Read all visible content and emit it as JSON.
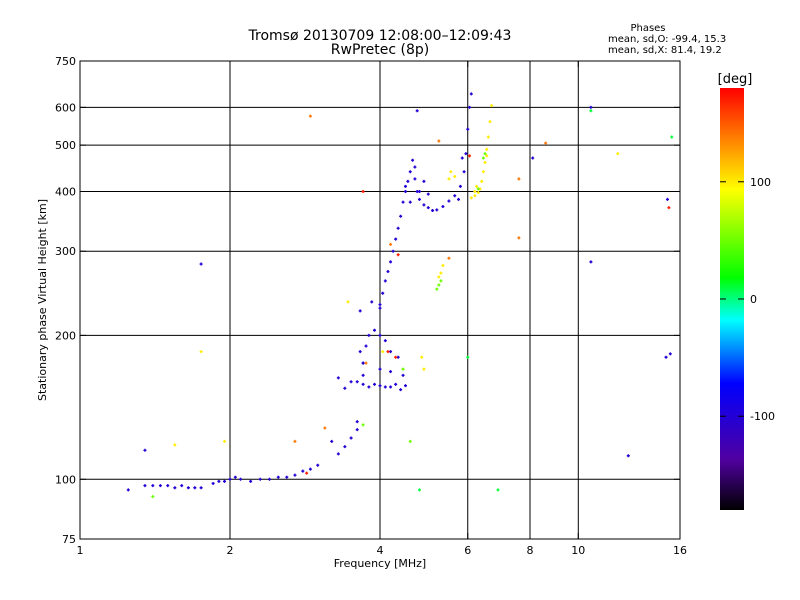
{
  "header": {
    "title": "Tromsø 20130709 12:08:00–12:09:43",
    "subtitle": "RwPretec (8p)",
    "phase_title": "Phases",
    "phase_line_o": "mean, sd,O: -99.4, 15.3",
    "phase_line_x": "mean, sd,X:  81.4, 19.2"
  },
  "chart_data": {
    "type": "scatter",
    "xlabel": "Frequency [MHz]",
    "ylabel": "Stationary phase Virtual Height [km]",
    "x_scale": "log",
    "y_scale": "log",
    "xlim": [
      1,
      16
    ],
    "ylim": [
      75,
      750
    ],
    "x_ticks": [
      1,
      2,
      4,
      6,
      8,
      10,
      16
    ],
    "y_ticks": [
      75,
      100,
      200,
      300,
      400,
      500,
      600,
      750
    ],
    "x_grid": [
      2,
      4,
      6,
      8,
      10
    ],
    "y_grid": [
      100,
      200,
      300,
      400,
      500,
      600
    ],
    "grid": true,
    "colorbar": {
      "label": "[deg]",
      "range": [
        -180,
        180
      ],
      "ticks": [
        -100,
        0,
        100
      ],
      "colors": [
        "#000000",
        "#5000a0",
        "#0000ff",
        "#00ffff",
        "#00ff00",
        "#ffff00",
        "#ff8000",
        "#ff0000"
      ]
    },
    "series": [
      {
        "phase": -100,
        "points": [
          [
            1.25,
            95
          ],
          [
            1.35,
            97
          ],
          [
            1.4,
            97
          ],
          [
            1.45,
            97
          ],
          [
            1.5,
            97
          ],
          [
            1.55,
            96
          ],
          [
            1.6,
            97
          ],
          [
            1.65,
            96
          ],
          [
            1.7,
            96
          ],
          [
            1.75,
            96
          ],
          [
            1.85,
            98
          ],
          [
            1.9,
            99
          ],
          [
            1.95,
            99
          ],
          [
            2.0,
            100
          ],
          [
            2.05,
            101
          ],
          [
            2.1,
            100
          ],
          [
            2.2,
            99
          ],
          [
            2.3,
            100
          ],
          [
            2.4,
            100
          ],
          [
            2.5,
            101
          ],
          [
            2.6,
            101
          ],
          [
            2.7,
            102
          ],
          [
            2.8,
            104
          ],
          [
            2.9,
            105
          ],
          [
            3.0,
            107
          ],
          [
            3.2,
            120
          ],
          [
            3.3,
            113
          ],
          [
            3.4,
            117
          ],
          [
            3.5,
            122
          ],
          [
            3.6,
            127
          ],
          [
            3.6,
            132
          ],
          [
            3.5,
            160
          ],
          [
            3.6,
            160
          ],
          [
            3.7,
            158
          ],
          [
            3.8,
            156
          ],
          [
            3.9,
            158
          ],
          [
            4.0,
            157
          ],
          [
            4.1,
            156
          ],
          [
            4.2,
            156
          ],
          [
            4.3,
            158
          ],
          [
            4.4,
            154
          ],
          [
            4.5,
            157
          ],
          [
            3.65,
            185
          ],
          [
            3.7,
            175
          ],
          [
            3.75,
            190
          ],
          [
            3.8,
            200
          ],
          [
            3.9,
            205
          ],
          [
            4.0,
            200
          ],
          [
            4.1,
            195
          ],
          [
            4.2,
            185
          ],
          [
            4.35,
            180
          ],
          [
            4.45,
            165
          ],
          [
            3.7,
            165
          ],
          [
            4.0,
            170
          ],
          [
            4.2,
            168
          ],
          [
            3.65,
            225
          ],
          [
            3.85,
            235
          ],
          [
            4.0,
            228
          ],
          [
            4.0,
            232
          ],
          [
            4.05,
            245
          ],
          [
            4.1,
            260
          ],
          [
            4.15,
            272
          ],
          [
            4.2,
            285
          ],
          [
            4.25,
            300
          ],
          [
            4.3,
            318
          ],
          [
            4.35,
            335
          ],
          [
            4.4,
            355
          ],
          [
            4.45,
            380
          ],
          [
            4.5,
            400
          ],
          [
            4.55,
            420
          ],
          [
            4.6,
            440
          ],
          [
            4.65,
            465
          ],
          [
            4.5,
            410
          ],
          [
            4.7,
            425
          ],
          [
            4.75,
            400
          ],
          [
            4.8,
            385
          ],
          [
            4.9,
            375
          ],
          [
            5.0,
            370
          ],
          [
            5.1,
            365
          ],
          [
            5.2,
            366
          ],
          [
            5.35,
            372
          ],
          [
            5.5,
            382
          ],
          [
            5.65,
            392
          ],
          [
            5.8,
            410
          ],
          [
            5.9,
            440
          ],
          [
            5.95,
            480
          ],
          [
            6.0,
            540
          ],
          [
            6.05,
            600
          ],
          [
            6.1,
            640
          ],
          [
            4.9,
            420
          ],
          [
            4.6,
            380
          ],
          [
            4.8,
            400
          ],
          [
            5.0,
            395
          ],
          [
            4.7,
            450
          ],
          [
            5.75,
            385
          ],
          [
            5.85,
            470
          ],
          [
            3.7,
            175
          ],
          [
            3.4,
            155
          ],
          [
            3.3,
            163
          ],
          [
            1.35,
            115
          ],
          [
            10.6,
            600
          ],
          [
            10.6,
            285
          ],
          [
            12.6,
            112
          ],
          [
            15.1,
            385
          ],
          [
            15.0,
            180
          ],
          [
            15.3,
            183
          ],
          [
            8.1,
            470
          ],
          [
            4.75,
            590
          ],
          [
            1.75,
            282
          ]
        ]
      },
      {
        "phase": 100,
        "points": [
          [
            6.2,
            392
          ],
          [
            6.3,
            398
          ],
          [
            6.35,
            405
          ],
          [
            6.4,
            420
          ],
          [
            6.45,
            440
          ],
          [
            6.5,
            460
          ],
          [
            6.55,
            490
          ],
          [
            6.6,
            520
          ],
          [
            6.65,
            560
          ],
          [
            6.7,
            605
          ],
          [
            6.1,
            388
          ],
          [
            6.25,
            410
          ],
          [
            6.2,
            400
          ],
          [
            5.55,
            440
          ],
          [
            5.65,
            430
          ],
          [
            5.5,
            425
          ],
          [
            5.25,
            265
          ],
          [
            5.3,
            270
          ],
          [
            5.35,
            280
          ],
          [
            4.85,
            180
          ],
          [
            4.9,
            170
          ],
          [
            6.55,
            475
          ],
          [
            1.75,
            185
          ],
          [
            1.55,
            118
          ],
          [
            1.95,
            120
          ],
          [
            3.45,
            235
          ],
          [
            12.0,
            480
          ],
          [
            4.05,
            185
          ]
        ]
      },
      {
        "phase": 50,
        "points": [
          [
            5.2,
            250
          ],
          [
            5.25,
            255
          ],
          [
            5.3,
            260
          ],
          [
            6.45,
            470
          ],
          [
            6.5,
            480
          ],
          [
            4.6,
            120
          ],
          [
            3.7,
            130
          ],
          [
            4.45,
            170
          ],
          [
            1.4,
            92
          ],
          [
            6.3,
            405
          ]
        ]
      },
      {
        "phase": 140,
        "points": [
          [
            2.9,
            575
          ],
          [
            8.6,
            505
          ],
          [
            4.2,
            310
          ],
          [
            5.5,
            290
          ],
          [
            5.25,
            510
          ],
          [
            7.6,
            425
          ],
          [
            7.6,
            320
          ],
          [
            3.75,
            175
          ],
          [
            2.7,
            120
          ],
          [
            3.1,
            128
          ]
        ]
      },
      {
        "phase": 170,
        "points": [
          [
            15.2,
            370
          ],
          [
            4.35,
            295
          ],
          [
            4.3,
            180
          ],
          [
            2.85,
            103
          ],
          [
            6.05,
            475
          ],
          [
            3.7,
            400
          ],
          [
            4.15,
            185
          ]
        ]
      },
      {
        "phase": 10,
        "points": [
          [
            6.9,
            95
          ],
          [
            10.6,
            590
          ],
          [
            6.0,
            180
          ],
          [
            15.4,
            520
          ],
          [
            4.8,
            95
          ]
        ]
      }
    ]
  }
}
